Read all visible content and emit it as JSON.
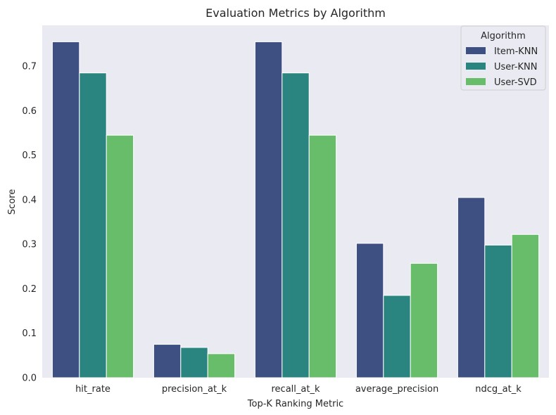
{
  "chart_data": {
    "type": "bar",
    "title": "Evaluation Metrics by Algorithm",
    "xlabel": "Top-K Ranking Metric",
    "ylabel": "Score",
    "categories": [
      "hit_rate",
      "precision_at_k",
      "recall_at_k",
      "average_precision",
      "ndcg_at_k"
    ],
    "series": [
      {
        "name": "Item-KNN",
        "color": "#3e4f82",
        "values": [
          0.755,
          0.075,
          0.755,
          0.302,
          0.405
        ]
      },
      {
        "name": "User-KNN",
        "color": "#2a8480",
        "values": [
          0.685,
          0.068,
          0.685,
          0.185,
          0.298
        ]
      },
      {
        "name": "User-SVD",
        "color": "#67bd6a",
        "values": [
          0.545,
          0.054,
          0.545,
          0.257,
          0.322
        ]
      }
    ],
    "ylim": [
      0,
      0.792
    ],
    "yticks": [
      0.0,
      0.1,
      0.2,
      0.3,
      0.4,
      0.5,
      0.6,
      0.7
    ],
    "ytick_labels": [
      "0.0",
      "0.1",
      "0.2",
      "0.3",
      "0.4",
      "0.5",
      "0.6",
      "0.7"
    ],
    "grid": false,
    "legend": {
      "title": "Algorithm",
      "placement": "top-right"
    },
    "background": "#eaeaf2"
  }
}
